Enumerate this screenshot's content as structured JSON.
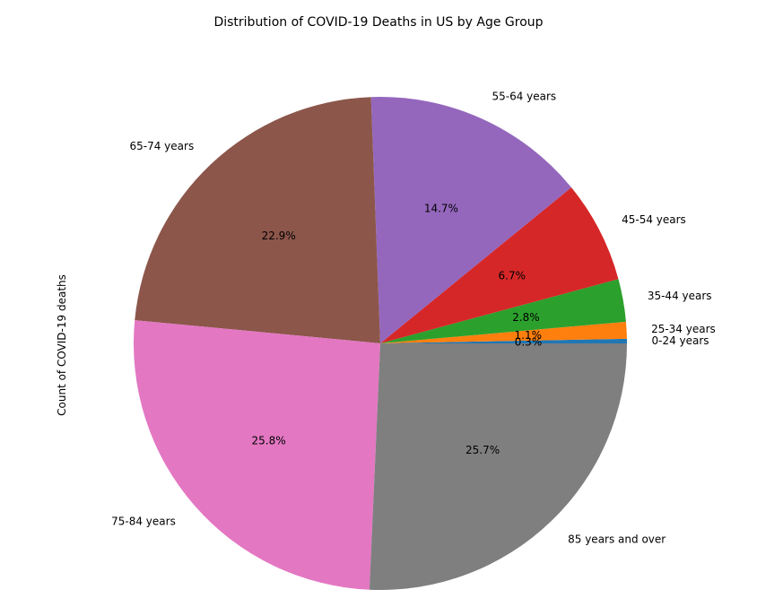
{
  "chart_data": {
    "type": "pie",
    "title": "Distribution of COVID-19 Deaths in US by Age Group",
    "ylabel": "Count of COVID-19 deaths",
    "legend": "none",
    "slices": [
      {
        "label": "0-24 years",
        "percent": 0.3,
        "pct_label": "0.3%",
        "color": "#1f77b4"
      },
      {
        "label": "25-34 years",
        "percent": 1.1,
        "pct_label": "1.1%",
        "color": "#ff7f0e"
      },
      {
        "label": "35-44 years",
        "percent": 2.8,
        "pct_label": "2.8%",
        "color": "#2ca02c"
      },
      {
        "label": "45-54 years",
        "percent": 6.7,
        "pct_label": "6.7%",
        "color": "#d62728"
      },
      {
        "label": "55-64 years",
        "percent": 14.7,
        "pct_label": "14.7%",
        "color": "#9467bd"
      },
      {
        "label": "65-74 years",
        "percent": 22.9,
        "pct_label": "22.9%",
        "color": "#8c564b"
      },
      {
        "label": "75-84 years",
        "percent": 25.8,
        "pct_label": "25.8%",
        "color": "#e377c2"
      },
      {
        "label": "85 years and over",
        "percent": 25.7,
        "pct_label": "25.7%",
        "color": "#7f7f7f"
      }
    ]
  }
}
